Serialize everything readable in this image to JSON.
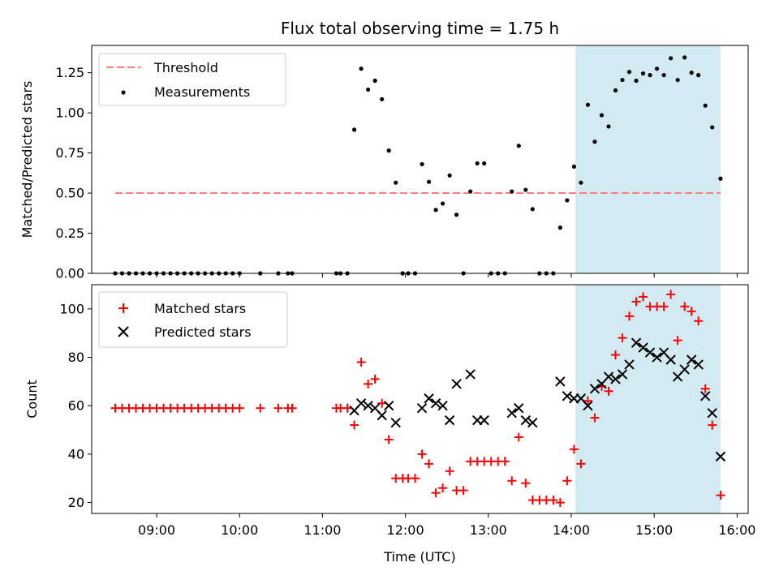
{
  "chart_data": [
    {
      "type": "scatter",
      "title": "Flux total observing time = 1.75 h",
      "xlabel": "",
      "ylabel": "Matched/Predicted stars",
      "xlim": [
        "08:13",
        "16:08"
      ],
      "ylim": [
        0,
        1.42
      ],
      "yticks": [
        0.0,
        0.25,
        0.5,
        0.75,
        1.0,
        1.25
      ],
      "ytick_labels": [
        "0.00",
        "0.25",
        "0.50",
        "0.75",
        "1.00",
        "1.25"
      ],
      "legend": {
        "placement": "top-left",
        "entries": [
          "Threshold",
          "Measurements"
        ]
      },
      "shaded_region": {
        "x": [
          "14:03",
          "15:48"
        ],
        "color": "#add8e6"
      },
      "threshold": {
        "label": "Threshold",
        "y": 0.5,
        "x": [
          "08:30",
          "15:48"
        ],
        "color": "#ff7f7f"
      },
      "series": [
        {
          "name": "Measurements",
          "color": "#000000",
          "points": [
            [
              "08:30",
              0
            ],
            [
              "08:35",
              0
            ],
            [
              "08:40",
              0
            ],
            [
              "08:45",
              0
            ],
            [
              "08:50",
              0
            ],
            [
              "08:55",
              0
            ],
            [
              "09:00",
              0
            ],
            [
              "09:05",
              0
            ],
            [
              "09:10",
              0
            ],
            [
              "09:15",
              0
            ],
            [
              "09:20",
              0
            ],
            [
              "09:25",
              0
            ],
            [
              "09:30",
              0
            ],
            [
              "09:35",
              0
            ],
            [
              "09:40",
              0
            ],
            [
              "09:45",
              0
            ],
            [
              "09:50",
              0
            ],
            [
              "09:55",
              0
            ],
            [
              "10:00",
              0
            ],
            [
              "10:15",
              0
            ],
            [
              "10:28",
              0
            ],
            [
              "10:35",
              0
            ],
            [
              "10:38",
              0
            ],
            [
              "11:10",
              0
            ],
            [
              "11:13",
              0
            ],
            [
              "11:18",
              0
            ],
            [
              "11:23",
              0.895
            ],
            [
              "11:28",
              1.275
            ],
            [
              "11:33",
              1.145
            ],
            [
              "11:38",
              1.2
            ],
            [
              "11:43",
              1.085
            ],
            [
              "11:48",
              0.765
            ],
            [
              "11:53",
              0.565
            ],
            [
              "11:58",
              0
            ],
            [
              "12:02",
              0
            ],
            [
              "12:07",
              0
            ],
            [
              "12:12",
              0.68
            ],
            [
              "12:17",
              0.57
            ],
            [
              "12:22",
              0.395
            ],
            [
              "12:27",
              0.435
            ],
            [
              "12:32",
              0.61
            ],
            [
              "12:37",
              0.365
            ],
            [
              "12:42",
              0
            ],
            [
              "12:47",
              0.51
            ],
            [
              "12:52",
              0.685
            ],
            [
              "12:57",
              0.685
            ],
            [
              "13:02",
              0
            ],
            [
              "13:07",
              0
            ],
            [
              "13:12",
              0
            ],
            [
              "13:17",
              0.51
            ],
            [
              "13:22",
              0.795
            ],
            [
              "13:27",
              0.52
            ],
            [
              "13:32",
              0.4
            ],
            [
              "13:37",
              0
            ],
            [
              "13:42",
              0
            ],
            [
              "13:47",
              0
            ],
            [
              "13:52",
              0.285
            ],
            [
              "13:57",
              0.455
            ],
            [
              "14:02",
              0.665
            ],
            [
              "14:07",
              0.565
            ],
            [
              "14:12",
              1.05
            ],
            [
              "14:17",
              0.82
            ],
            [
              "14:22",
              0.985
            ],
            [
              "14:27",
              0.915
            ],
            [
              "14:32",
              1.14
            ],
            [
              "14:37",
              1.205
            ],
            [
              "14:42",
              1.255
            ],
            [
              "14:47",
              1.2
            ],
            [
              "14:52",
              1.245
            ],
            [
              "14:57",
              1.235
            ],
            [
              "15:02",
              1.275
            ],
            [
              "15:07",
              1.235
            ],
            [
              "15:12",
              1.34
            ],
            [
              "15:17",
              1.205
            ],
            [
              "15:22",
              1.345
            ],
            [
              "15:27",
              1.25
            ],
            [
              "15:32",
              1.235
            ],
            [
              "15:37",
              1.045
            ],
            [
              "15:42",
              0.91
            ],
            [
              "15:48",
              0.59
            ]
          ]
        }
      ]
    },
    {
      "type": "scatter",
      "title": "",
      "xlabel": "Time (UTC)",
      "ylabel": "Count",
      "xlim": [
        "08:13",
        "16:08"
      ],
      "ylim": [
        15.5,
        110
      ],
      "xticks": [
        "09:00",
        "10:00",
        "11:00",
        "12:00",
        "13:00",
        "14:00",
        "15:00",
        "16:00"
      ],
      "yticks": [
        20,
        40,
        60,
        80,
        100
      ],
      "ytick_labels": [
        "20",
        "40",
        "60",
        "80",
        "100"
      ],
      "legend": {
        "placement": "top-left",
        "entries": [
          "Matched stars",
          "Predicted stars"
        ]
      },
      "shaded_region": {
        "x": [
          "14:03",
          "15:48"
        ],
        "color": "#add8e6"
      },
      "series": [
        {
          "name": "Matched stars",
          "marker": "plus",
          "color": "#ff0000",
          "points": [
            [
              "08:30",
              59
            ],
            [
              "08:35",
              59
            ],
            [
              "08:40",
              59
            ],
            [
              "08:45",
              59
            ],
            [
              "08:50",
              59
            ],
            [
              "08:55",
              59
            ],
            [
              "09:00",
              59
            ],
            [
              "09:05",
              59
            ],
            [
              "09:10",
              59
            ],
            [
              "09:15",
              59
            ],
            [
              "09:20",
              59
            ],
            [
              "09:25",
              59
            ],
            [
              "09:30",
              59
            ],
            [
              "09:35",
              59
            ],
            [
              "09:40",
              59
            ],
            [
              "09:45",
              59
            ],
            [
              "09:50",
              59
            ],
            [
              "09:55",
              59
            ],
            [
              "10:00",
              59
            ],
            [
              "10:15",
              59
            ],
            [
              "10:28",
              59
            ],
            [
              "10:35",
              59
            ],
            [
              "10:38",
              59
            ],
            [
              "11:10",
              59
            ],
            [
              "11:13",
              59
            ],
            [
              "11:18",
              59
            ],
            [
              "11:23",
              52
            ],
            [
              "11:28",
              78
            ],
            [
              "11:33",
              69
            ],
            [
              "11:38",
              71
            ],
            [
              "11:43",
              61
            ],
            [
              "11:48",
              46
            ],
            [
              "11:53",
              30
            ],
            [
              "11:58",
              30
            ],
            [
              "12:02",
              30
            ],
            [
              "12:07",
              30
            ],
            [
              "12:12",
              40
            ],
            [
              "12:17",
              36
            ],
            [
              "12:22",
              24
            ],
            [
              "12:27",
              26
            ],
            [
              "12:32",
              33
            ],
            [
              "12:37",
              25
            ],
            [
              "12:42",
              25
            ],
            [
              "12:47",
              37
            ],
            [
              "12:52",
              37
            ],
            [
              "12:57",
              37
            ],
            [
              "13:02",
              37
            ],
            [
              "13:07",
              37
            ],
            [
              "13:12",
              37
            ],
            [
              "13:17",
              29
            ],
            [
              "13:22",
              47
            ],
            [
              "13:27",
              28
            ],
            [
              "13:32",
              21
            ],
            [
              "13:37",
              21
            ],
            [
              "13:42",
              21
            ],
            [
              "13:47",
              21
            ],
            [
              "13:52",
              20
            ],
            [
              "13:57",
              29
            ],
            [
              "14:02",
              42
            ],
            [
              "14:07",
              36
            ],
            [
              "14:12",
              62
            ],
            [
              "14:17",
              55
            ],
            [
              "14:22",
              68
            ],
            [
              "14:27",
              66
            ],
            [
              "14:32",
              81
            ],
            [
              "14:37",
              88
            ],
            [
              "14:42",
              97
            ],
            [
              "14:47",
              103
            ],
            [
              "14:52",
              105
            ],
            [
              "14:57",
              101
            ],
            [
              "15:02",
              101
            ],
            [
              "15:07",
              101
            ],
            [
              "15:12",
              106
            ],
            [
              "15:17",
              87
            ],
            [
              "15:22",
              101
            ],
            [
              "15:27",
              99
            ],
            [
              "15:32",
              95
            ],
            [
              "15:37",
              67
            ],
            [
              "15:42",
              52
            ],
            [
              "15:48",
              23
            ]
          ]
        },
        {
          "name": "Predicted stars",
          "marker": "x",
          "color": "#000000",
          "points": [
            [
              "11:23",
              58
            ],
            [
              "11:28",
              61
            ],
            [
              "11:33",
              60
            ],
            [
              "11:38",
              59
            ],
            [
              "11:43",
              56
            ],
            [
              "11:48",
              60
            ],
            [
              "11:53",
              53
            ],
            [
              "12:12",
              59
            ],
            [
              "12:17",
              63
            ],
            [
              "12:22",
              61
            ],
            [
              "12:27",
              60
            ],
            [
              "12:32",
              54
            ],
            [
              "12:37",
              69
            ],
            [
              "12:47",
              73
            ],
            [
              "12:52",
              54
            ],
            [
              "12:57",
              54
            ],
            [
              "13:17",
              57
            ],
            [
              "13:22",
              59
            ],
            [
              "13:27",
              54
            ],
            [
              "13:32",
              53
            ],
            [
              "13:52",
              70
            ],
            [
              "13:57",
              64
            ],
            [
              "14:02",
              63
            ],
            [
              "14:07",
              63
            ],
            [
              "14:12",
              60
            ],
            [
              "14:17",
              67
            ],
            [
              "14:22",
              69
            ],
            [
              "14:27",
              72
            ],
            [
              "14:32",
              71
            ],
            [
              "14:37",
              73
            ],
            [
              "14:42",
              77
            ],
            [
              "14:47",
              86
            ],
            [
              "14:52",
              84
            ],
            [
              "14:57",
              82
            ],
            [
              "15:02",
              80
            ],
            [
              "15:07",
              82
            ],
            [
              "15:12",
              79
            ],
            [
              "15:17",
              72
            ],
            [
              "15:22",
              75
            ],
            [
              "15:27",
              79
            ],
            [
              "15:32",
              77
            ],
            [
              "15:37",
              64
            ],
            [
              "15:42",
              57
            ],
            [
              "15:48",
              39
            ]
          ]
        }
      ]
    }
  ]
}
